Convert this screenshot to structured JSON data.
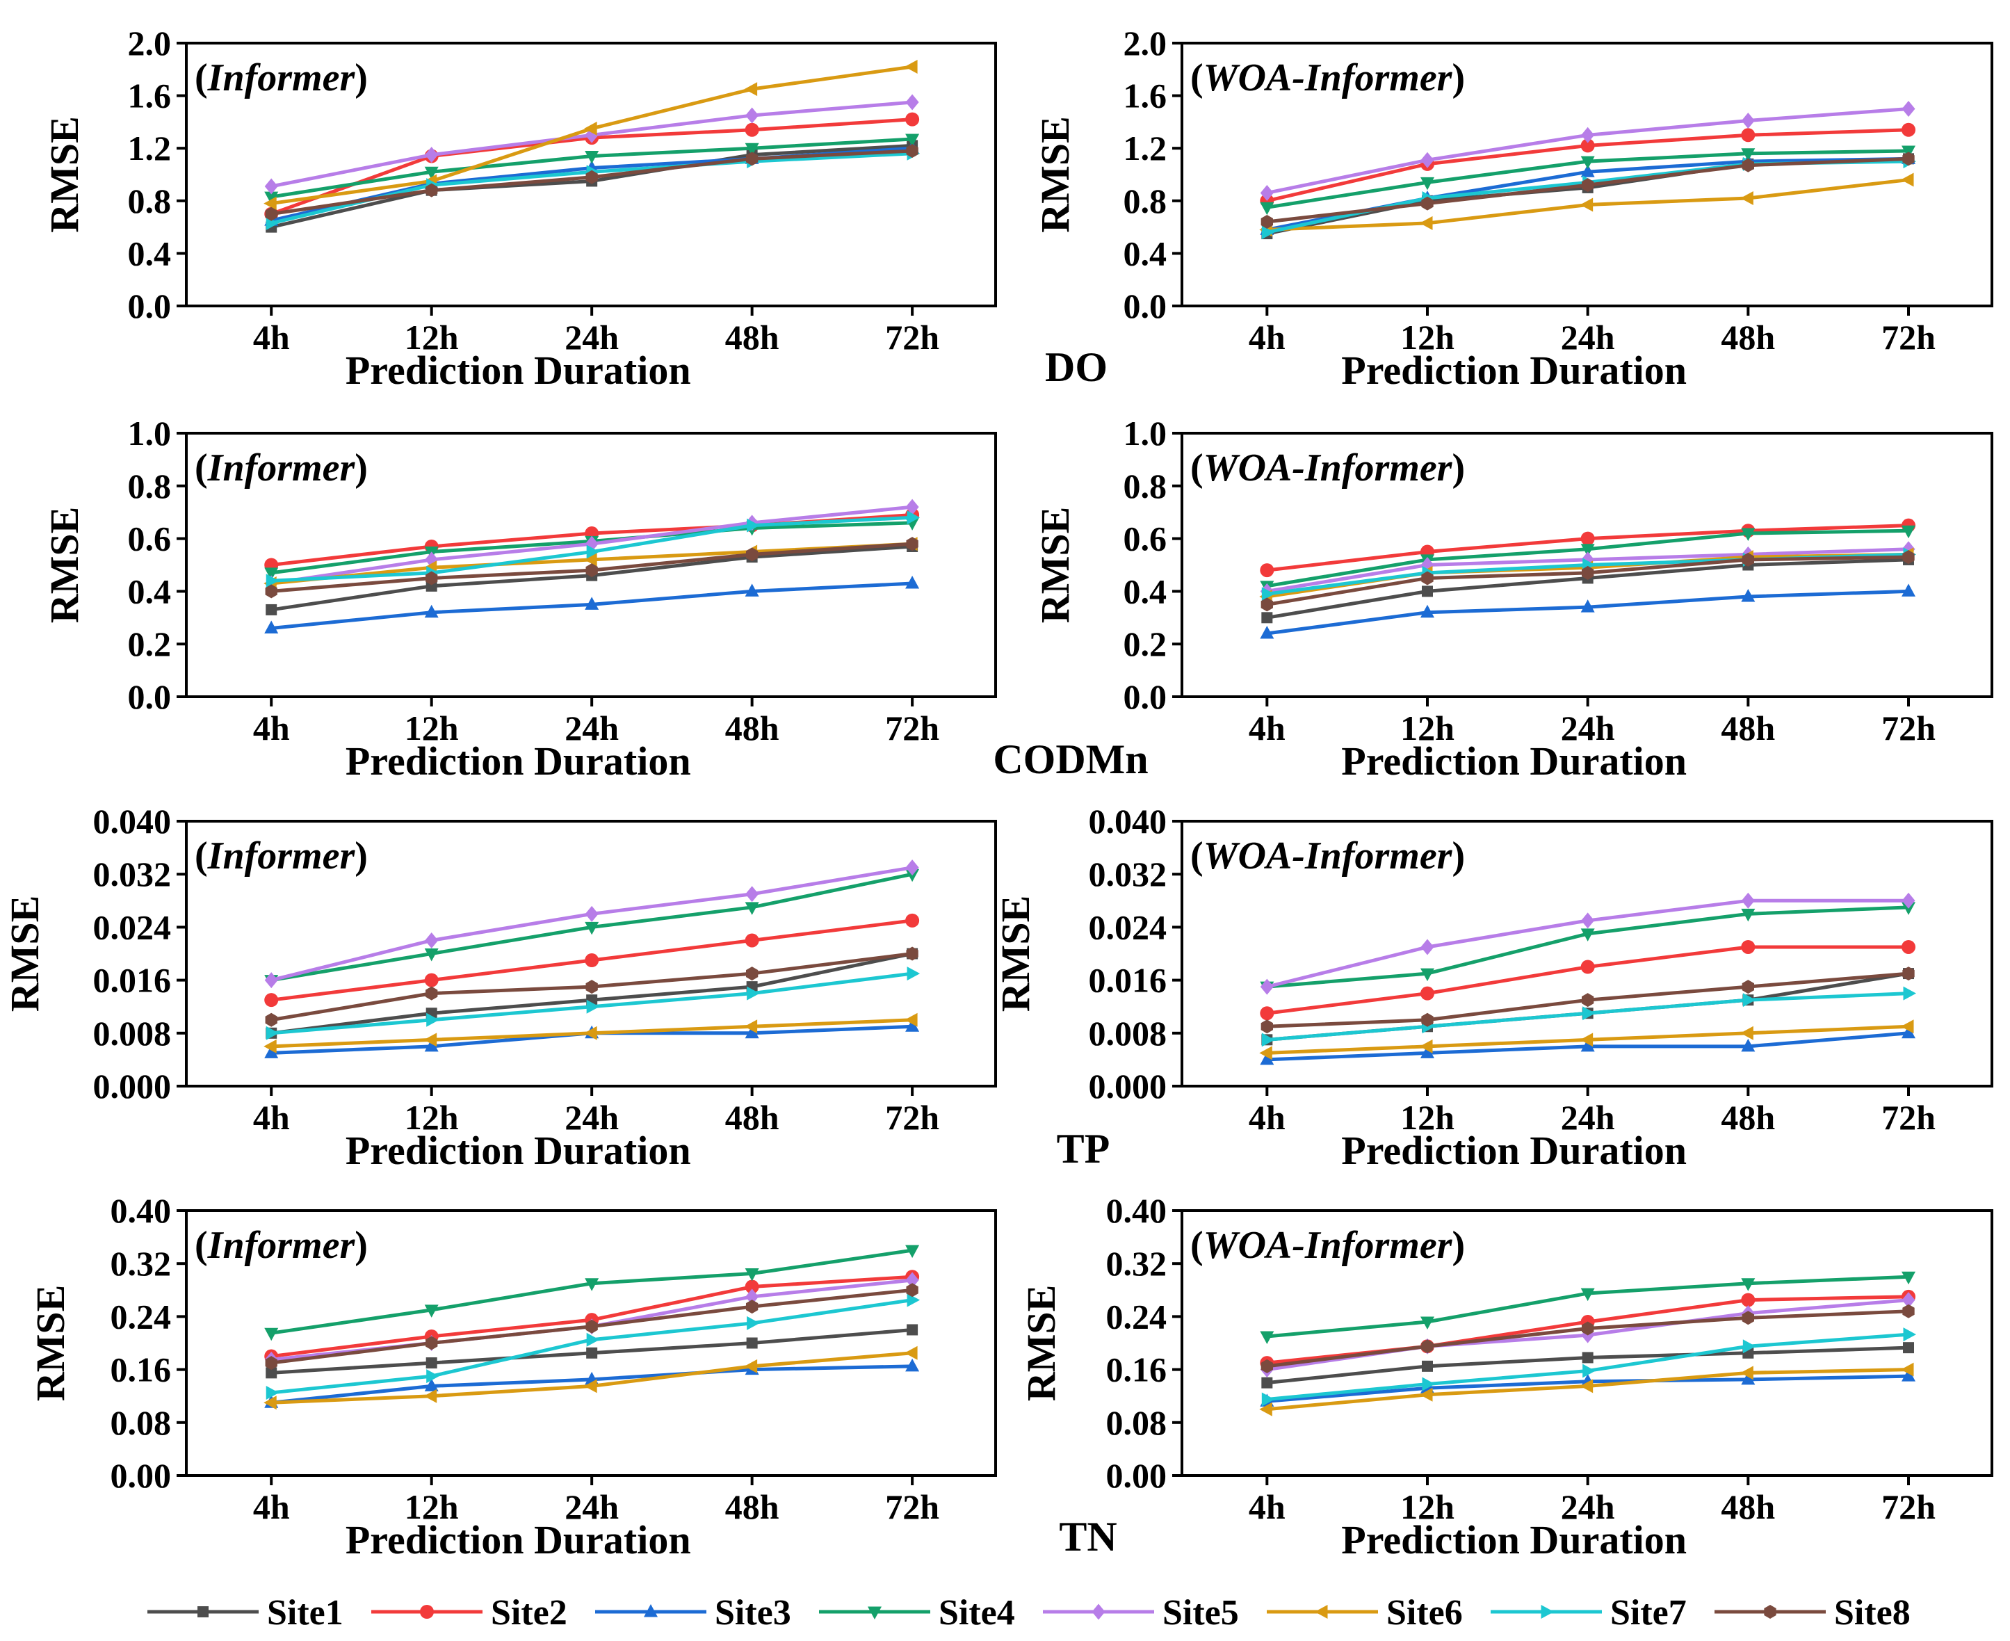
{
  "chart_data": {
    "type": "line",
    "layout": "4 rows x 2 columns grid",
    "legend_position": "bottom",
    "categories": [
      "4h",
      "12h",
      "24h",
      "48h",
      "72h"
    ],
    "series_styles": [
      {
        "name": "Site1",
        "color": "#4d4d4d",
        "marker": "square"
      },
      {
        "name": "Site2",
        "color": "#f23a3a",
        "marker": "circle"
      },
      {
        "name": "Site3",
        "color": "#1c6bd4",
        "marker": "triangle-up"
      },
      {
        "name": "Site4",
        "color": "#14a06a",
        "marker": "triangle-down"
      },
      {
        "name": "Site5",
        "color": "#b77de8",
        "marker": "diamond"
      },
      {
        "name": "Site6",
        "color": "#d99a12",
        "marker": "triangle-left"
      },
      {
        "name": "Site7",
        "color": "#1cc7d1",
        "marker": "triangle-right"
      },
      {
        "name": "Site8",
        "color": "#7a4a3e",
        "marker": "hexagon"
      }
    ],
    "panels": [
      {
        "id": "do-informer",
        "row": 0,
        "col": 0,
        "title": "(Informer)",
        "title_pre": "(",
        "title_main": "Informer",
        "title_post": ")",
        "pollutant": "DO",
        "xlabel": "Prediction Duration",
        "ylabel": "RMSE",
        "ylim": [
          0,
          2.0
        ],
        "yticks": [
          0.0,
          0.4,
          0.8,
          1.2,
          1.6,
          2.0
        ],
        "ytick_labels": [
          "0.0",
          "0.4",
          "0.8",
          "1.2",
          "1.6",
          "2.0"
        ],
        "series": [
          {
            "name": "Site1",
            "values": [
              0.6,
              0.88,
              0.95,
              1.15,
              1.22
            ]
          },
          {
            "name": "Site2",
            "values": [
              0.7,
              1.14,
              1.28,
              1.34,
              1.42
            ]
          },
          {
            "name": "Site3",
            "values": [
              0.65,
              0.93,
              1.05,
              1.12,
              1.2
            ]
          },
          {
            "name": "Site4",
            "values": [
              0.83,
              1.02,
              1.14,
              1.2,
              1.27
            ]
          },
          {
            "name": "Site5",
            "values": [
              0.91,
              1.15,
              1.3,
              1.45,
              1.55
            ]
          },
          {
            "name": "Site6",
            "values": [
              0.78,
              0.95,
              1.35,
              1.65,
              1.82
            ]
          },
          {
            "name": "Site7",
            "values": [
              0.63,
              0.92,
              1.02,
              1.1,
              1.16
            ]
          },
          {
            "name": "Site8",
            "values": [
              0.7,
              0.88,
              0.98,
              1.12,
              1.18
            ]
          }
        ]
      },
      {
        "id": "do-woa",
        "row": 0,
        "col": 1,
        "title": "(WOA-Informer)",
        "title_pre": "(",
        "title_main": "WOA-Informer",
        "title_post": ")",
        "xlabel": "Prediction Duration",
        "ylabel": "RMSE",
        "ylim": [
          0,
          2.0
        ],
        "yticks": [
          0.0,
          0.4,
          0.8,
          1.2,
          1.6,
          2.0
        ],
        "ytick_labels": [
          "0.0",
          "0.4",
          "0.8",
          "1.2",
          "1.6",
          "2.0"
        ],
        "series": [
          {
            "name": "Site1",
            "values": [
              0.55,
              0.8,
              0.9,
              1.08,
              1.12
            ]
          },
          {
            "name": "Site2",
            "values": [
              0.8,
              1.08,
              1.22,
              1.3,
              1.34
            ]
          },
          {
            "name": "Site3",
            "values": [
              0.58,
              0.82,
              1.02,
              1.1,
              1.12
            ]
          },
          {
            "name": "Site4",
            "values": [
              0.75,
              0.94,
              1.1,
              1.16,
              1.18
            ]
          },
          {
            "name": "Site5",
            "values": [
              0.86,
              1.11,
              1.3,
              1.41,
              1.5
            ]
          },
          {
            "name": "Site6",
            "values": [
              0.58,
              0.63,
              0.77,
              0.82,
              0.96
            ]
          },
          {
            "name": "Site7",
            "values": [
              0.56,
              0.82,
              0.94,
              1.08,
              1.1
            ]
          },
          {
            "name": "Site8",
            "values": [
              0.64,
              0.78,
              0.92,
              1.07,
              1.12
            ]
          }
        ]
      },
      {
        "id": "codmn-informer",
        "row": 1,
        "col": 0,
        "title": "(Informer)",
        "title_pre": "(",
        "title_main": "Informer",
        "title_post": ")",
        "pollutant": "CODMn",
        "xlabel": "Prediction Duration",
        "ylabel": "RMSE",
        "ylim": [
          0,
          1.0
        ],
        "yticks": [
          0.0,
          0.2,
          0.4,
          0.6,
          0.8,
          1.0
        ],
        "ytick_labels": [
          "0.0",
          "0.2",
          "0.4",
          "0.6",
          "0.8",
          "1.0"
        ],
        "series": [
          {
            "name": "Site1",
            "values": [
              0.33,
              0.42,
              0.46,
              0.53,
              0.57
            ]
          },
          {
            "name": "Site2",
            "values": [
              0.5,
              0.57,
              0.62,
              0.65,
              0.69
            ]
          },
          {
            "name": "Site3",
            "values": [
              0.26,
              0.32,
              0.35,
              0.4,
              0.43
            ]
          },
          {
            "name": "Site4",
            "values": [
              0.47,
              0.55,
              0.59,
              0.64,
              0.66
            ]
          },
          {
            "name": "Site5",
            "values": [
              0.43,
              0.52,
              0.58,
              0.66,
              0.72
            ]
          },
          {
            "name": "Site6",
            "values": [
              0.43,
              0.49,
              0.52,
              0.55,
              0.58
            ]
          },
          {
            "name": "Site7",
            "values": [
              0.44,
              0.47,
              0.55,
              0.65,
              0.68
            ]
          },
          {
            "name": "Site8",
            "values": [
              0.4,
              0.45,
              0.48,
              0.54,
              0.58
            ]
          }
        ]
      },
      {
        "id": "codmn-woa",
        "row": 1,
        "col": 1,
        "title": "(WOA-Informer)",
        "title_pre": "(",
        "title_main": "WOA-Informer",
        "title_post": ")",
        "xlabel": "Prediction Duration",
        "ylabel": "RMSE",
        "ylim": [
          0,
          1.0
        ],
        "yticks": [
          0.0,
          0.2,
          0.4,
          0.6,
          0.8,
          1.0
        ],
        "ytick_labels": [
          "0.0",
          "0.2",
          "0.4",
          "0.6",
          "0.8",
          "1.0"
        ],
        "series": [
          {
            "name": "Site1",
            "values": [
              0.3,
              0.4,
              0.45,
              0.5,
              0.52
            ]
          },
          {
            "name": "Site2",
            "values": [
              0.48,
              0.55,
              0.6,
              0.63,
              0.65
            ]
          },
          {
            "name": "Site3",
            "values": [
              0.24,
              0.32,
              0.34,
              0.38,
              0.4
            ]
          },
          {
            "name": "Site4",
            "values": [
              0.42,
              0.52,
              0.56,
              0.62,
              0.63
            ]
          },
          {
            "name": "Site5",
            "values": [
              0.4,
              0.5,
              0.52,
              0.54,
              0.56
            ]
          },
          {
            "name": "Site6",
            "values": [
              0.38,
              0.47,
              0.49,
              0.53,
              0.54
            ]
          },
          {
            "name": "Site7",
            "values": [
              0.39,
              0.47,
              0.5,
              0.52,
              0.54
            ]
          },
          {
            "name": "Site8",
            "values": [
              0.35,
              0.45,
              0.47,
              0.52,
              0.53
            ]
          }
        ]
      },
      {
        "id": "tp-informer",
        "row": 2,
        "col": 0,
        "title": "(Informer)",
        "title_pre": "(",
        "title_main": "Informer",
        "title_post": ")",
        "pollutant": "TP",
        "xlabel": "Prediction Duration",
        "ylabel": "RMSE",
        "ylim": [
          0,
          0.04
        ],
        "yticks": [
          0.0,
          0.008,
          0.016,
          0.024,
          0.032,
          0.04
        ],
        "ytick_labels": [
          "0.000",
          "0.008",
          "0.016",
          "0.024",
          "0.032",
          "0.040"
        ],
        "series": [
          {
            "name": "Site1",
            "values": [
              0.008,
              0.011,
              0.013,
              0.015,
              0.02
            ]
          },
          {
            "name": "Site2",
            "values": [
              0.013,
              0.016,
              0.019,
              0.022,
              0.025
            ]
          },
          {
            "name": "Site3",
            "values": [
              0.005,
              0.006,
              0.008,
              0.008,
              0.009
            ]
          },
          {
            "name": "Site4",
            "values": [
              0.016,
              0.02,
              0.024,
              0.027,
              0.032
            ]
          },
          {
            "name": "Site5",
            "values": [
              0.016,
              0.022,
              0.026,
              0.029,
              0.033
            ]
          },
          {
            "name": "Site6",
            "values": [
              0.006,
              0.007,
              0.008,
              0.009,
              0.01
            ]
          },
          {
            "name": "Site7",
            "values": [
              0.008,
              0.01,
              0.012,
              0.014,
              0.017
            ]
          },
          {
            "name": "Site8",
            "values": [
              0.01,
              0.014,
              0.015,
              0.017,
              0.02
            ]
          }
        ]
      },
      {
        "id": "tp-woa",
        "row": 2,
        "col": 1,
        "title": "(WOA-Informer)",
        "title_pre": "(",
        "title_main": "WOA-Informer",
        "title_post": ")",
        "xlabel": "Prediction Duration",
        "ylabel": "RMSE",
        "ylim": [
          0,
          0.04
        ],
        "yticks": [
          0.0,
          0.008,
          0.016,
          0.024,
          0.032,
          0.04
        ],
        "ytick_labels": [
          "0.000",
          "0.008",
          "0.016",
          "0.024",
          "0.032",
          "0.040"
        ],
        "series": [
          {
            "name": "Site1",
            "values": [
              0.007,
              0.009,
              0.011,
              0.013,
              0.017
            ]
          },
          {
            "name": "Site2",
            "values": [
              0.011,
              0.014,
              0.018,
              0.021,
              0.021
            ]
          },
          {
            "name": "Site3",
            "values": [
              0.004,
              0.005,
              0.006,
              0.006,
              0.008
            ]
          },
          {
            "name": "Site4",
            "values": [
              0.015,
              0.017,
              0.023,
              0.026,
              0.027
            ]
          },
          {
            "name": "Site5",
            "values": [
              0.015,
              0.021,
              0.025,
              0.028,
              0.028
            ]
          },
          {
            "name": "Site6",
            "values": [
              0.005,
              0.006,
              0.007,
              0.008,
              0.009
            ]
          },
          {
            "name": "Site7",
            "values": [
              0.007,
              0.009,
              0.011,
              0.013,
              0.014
            ]
          },
          {
            "name": "Site8",
            "values": [
              0.009,
              0.01,
              0.013,
              0.015,
              0.017
            ]
          }
        ]
      },
      {
        "id": "tn-informer",
        "row": 3,
        "col": 0,
        "title": "(Informer)",
        "title_pre": "(",
        "title_main": "Informer",
        "title_post": ")",
        "pollutant": "TN",
        "xlabel": "Prediction Duration",
        "ylabel": "RMSE",
        "ylim": [
          0,
          0.4
        ],
        "yticks": [
          0.0,
          0.08,
          0.16,
          0.24,
          0.32,
          0.4
        ],
        "ytick_labels": [
          "0.00",
          "0.08",
          "0.16",
          "0.24",
          "0.32",
          "0.40"
        ],
        "series": [
          {
            "name": "Site1",
            "values": [
              0.155,
              0.17,
              0.185,
              0.2,
              0.22
            ]
          },
          {
            "name": "Site2",
            "values": [
              0.18,
              0.21,
              0.235,
              0.285,
              0.3
            ]
          },
          {
            "name": "Site3",
            "values": [
              0.11,
              0.135,
              0.145,
              0.16,
              0.165
            ]
          },
          {
            "name": "Site4",
            "values": [
              0.215,
              0.25,
              0.29,
              0.305,
              0.34
            ]
          },
          {
            "name": "Site5",
            "values": [
              0.175,
              0.2,
              0.225,
              0.27,
              0.295
            ]
          },
          {
            "name": "Site6",
            "values": [
              0.11,
              0.12,
              0.135,
              0.165,
              0.185
            ]
          },
          {
            "name": "Site7",
            "values": [
              0.125,
              0.15,
              0.205,
              0.23,
              0.265
            ]
          },
          {
            "name": "Site8",
            "values": [
              0.17,
              0.2,
              0.225,
              0.255,
              0.28
            ]
          }
        ]
      },
      {
        "id": "tn-woa",
        "row": 3,
        "col": 1,
        "title": "(WOA-Informer)",
        "title_pre": "(",
        "title_main": "WOA-Informer",
        "title_post": ")",
        "xlabel": "Prediction Duration",
        "ylabel": "RMSE",
        "ylim": [
          0,
          0.4
        ],
        "yticks": [
          0.0,
          0.08,
          0.16,
          0.24,
          0.32,
          0.4
        ],
        "ytick_labels": [
          "0.00",
          "0.08",
          "0.16",
          "0.24",
          "0.32",
          "0.40"
        ],
        "series": [
          {
            "name": "Site1",
            "values": [
              0.14,
              0.165,
              0.178,
              0.185,
              0.193
            ]
          },
          {
            "name": "Site2",
            "values": [
              0.17,
              0.195,
              0.232,
              0.265,
              0.27
            ]
          },
          {
            "name": "Site3",
            "values": [
              0.112,
              0.132,
              0.142,
              0.145,
              0.15
            ]
          },
          {
            "name": "Site4",
            "values": [
              0.21,
              0.232,
              0.275,
              0.29,
              0.3
            ]
          },
          {
            "name": "Site5",
            "values": [
              0.16,
              0.195,
              0.212,
              0.245,
              0.265
            ]
          },
          {
            "name": "Site6",
            "values": [
              0.1,
              0.122,
              0.135,
              0.155,
              0.16
            ]
          },
          {
            "name": "Site7",
            "values": [
              0.115,
              0.138,
              0.158,
              0.195,
              0.213
            ]
          },
          {
            "name": "Site8",
            "values": [
              0.165,
              0.195,
              0.222,
              0.238,
              0.248
            ]
          }
        ]
      }
    ]
  }
}
